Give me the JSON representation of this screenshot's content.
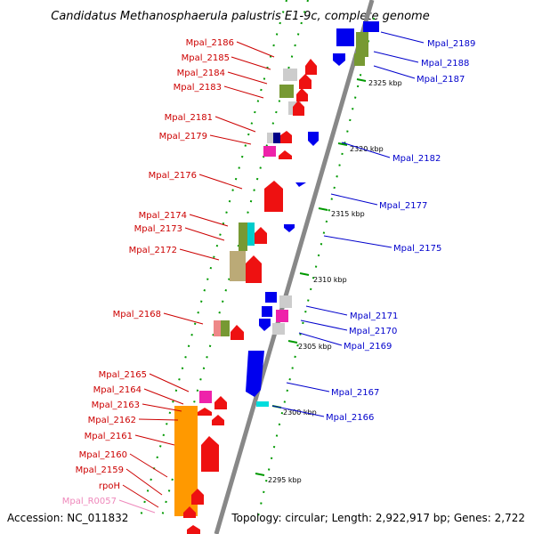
{
  "title": "Candidatus Methanosphaerula palustris E1-9c, complete genome",
  "footer": {
    "accession": "Accession: NC_011832",
    "topology": "Topology: circular; Length: 2,922,917 bp; Genes: 2,722"
  },
  "colors": {
    "forward_label": "#cc0000",
    "reverse_label": "#0000cc",
    "rna_label": "#ee88bb",
    "backbone": "#888888",
    "tick": "#009900"
  },
  "scale_labels": [
    "2325 kbp",
    "2320 kbp",
    "2315 kbp",
    "2310 kbp",
    "2305 kbp",
    "2300 kbp",
    "2295 kbp"
  ],
  "left_genes": [
    {
      "label": "Mpal_2186"
    },
    {
      "label": "Mpal_2185"
    },
    {
      "label": "Mpal_2184"
    },
    {
      "label": "Mpal_2183"
    },
    {
      "label": "Mpal_2181"
    },
    {
      "label": "Mpal_2179"
    },
    {
      "label": "Mpal_2176"
    },
    {
      "label": "Mpal_2174"
    },
    {
      "label": "Mpal_2173"
    },
    {
      "label": "Mpal_2172"
    },
    {
      "label": "Mpal_2168"
    },
    {
      "label": "Mpal_2165"
    },
    {
      "label": "Mpal_2164"
    },
    {
      "label": "Mpal_2163"
    },
    {
      "label": "Mpal_2162"
    },
    {
      "label": "Mpal_2161"
    },
    {
      "label": "Mpal_2160"
    },
    {
      "label": "Mpal_2159"
    },
    {
      "label": "rpoH"
    },
    {
      "label": "Mpal_R0057"
    }
  ],
  "right_genes": [
    {
      "label": "Mpal_2189"
    },
    {
      "label": "Mpal_2188"
    },
    {
      "label": "Mpal_2187"
    },
    {
      "label": "Mpal_2182"
    },
    {
      "label": "Mpal_2177"
    },
    {
      "label": "Mpal_2175"
    },
    {
      "label": "Mpal_2171"
    },
    {
      "label": "Mpal_2170"
    },
    {
      "label": "Mpal_2169"
    },
    {
      "label": "Mpal_2167"
    },
    {
      "label": "Mpal_2166"
    }
  ]
}
